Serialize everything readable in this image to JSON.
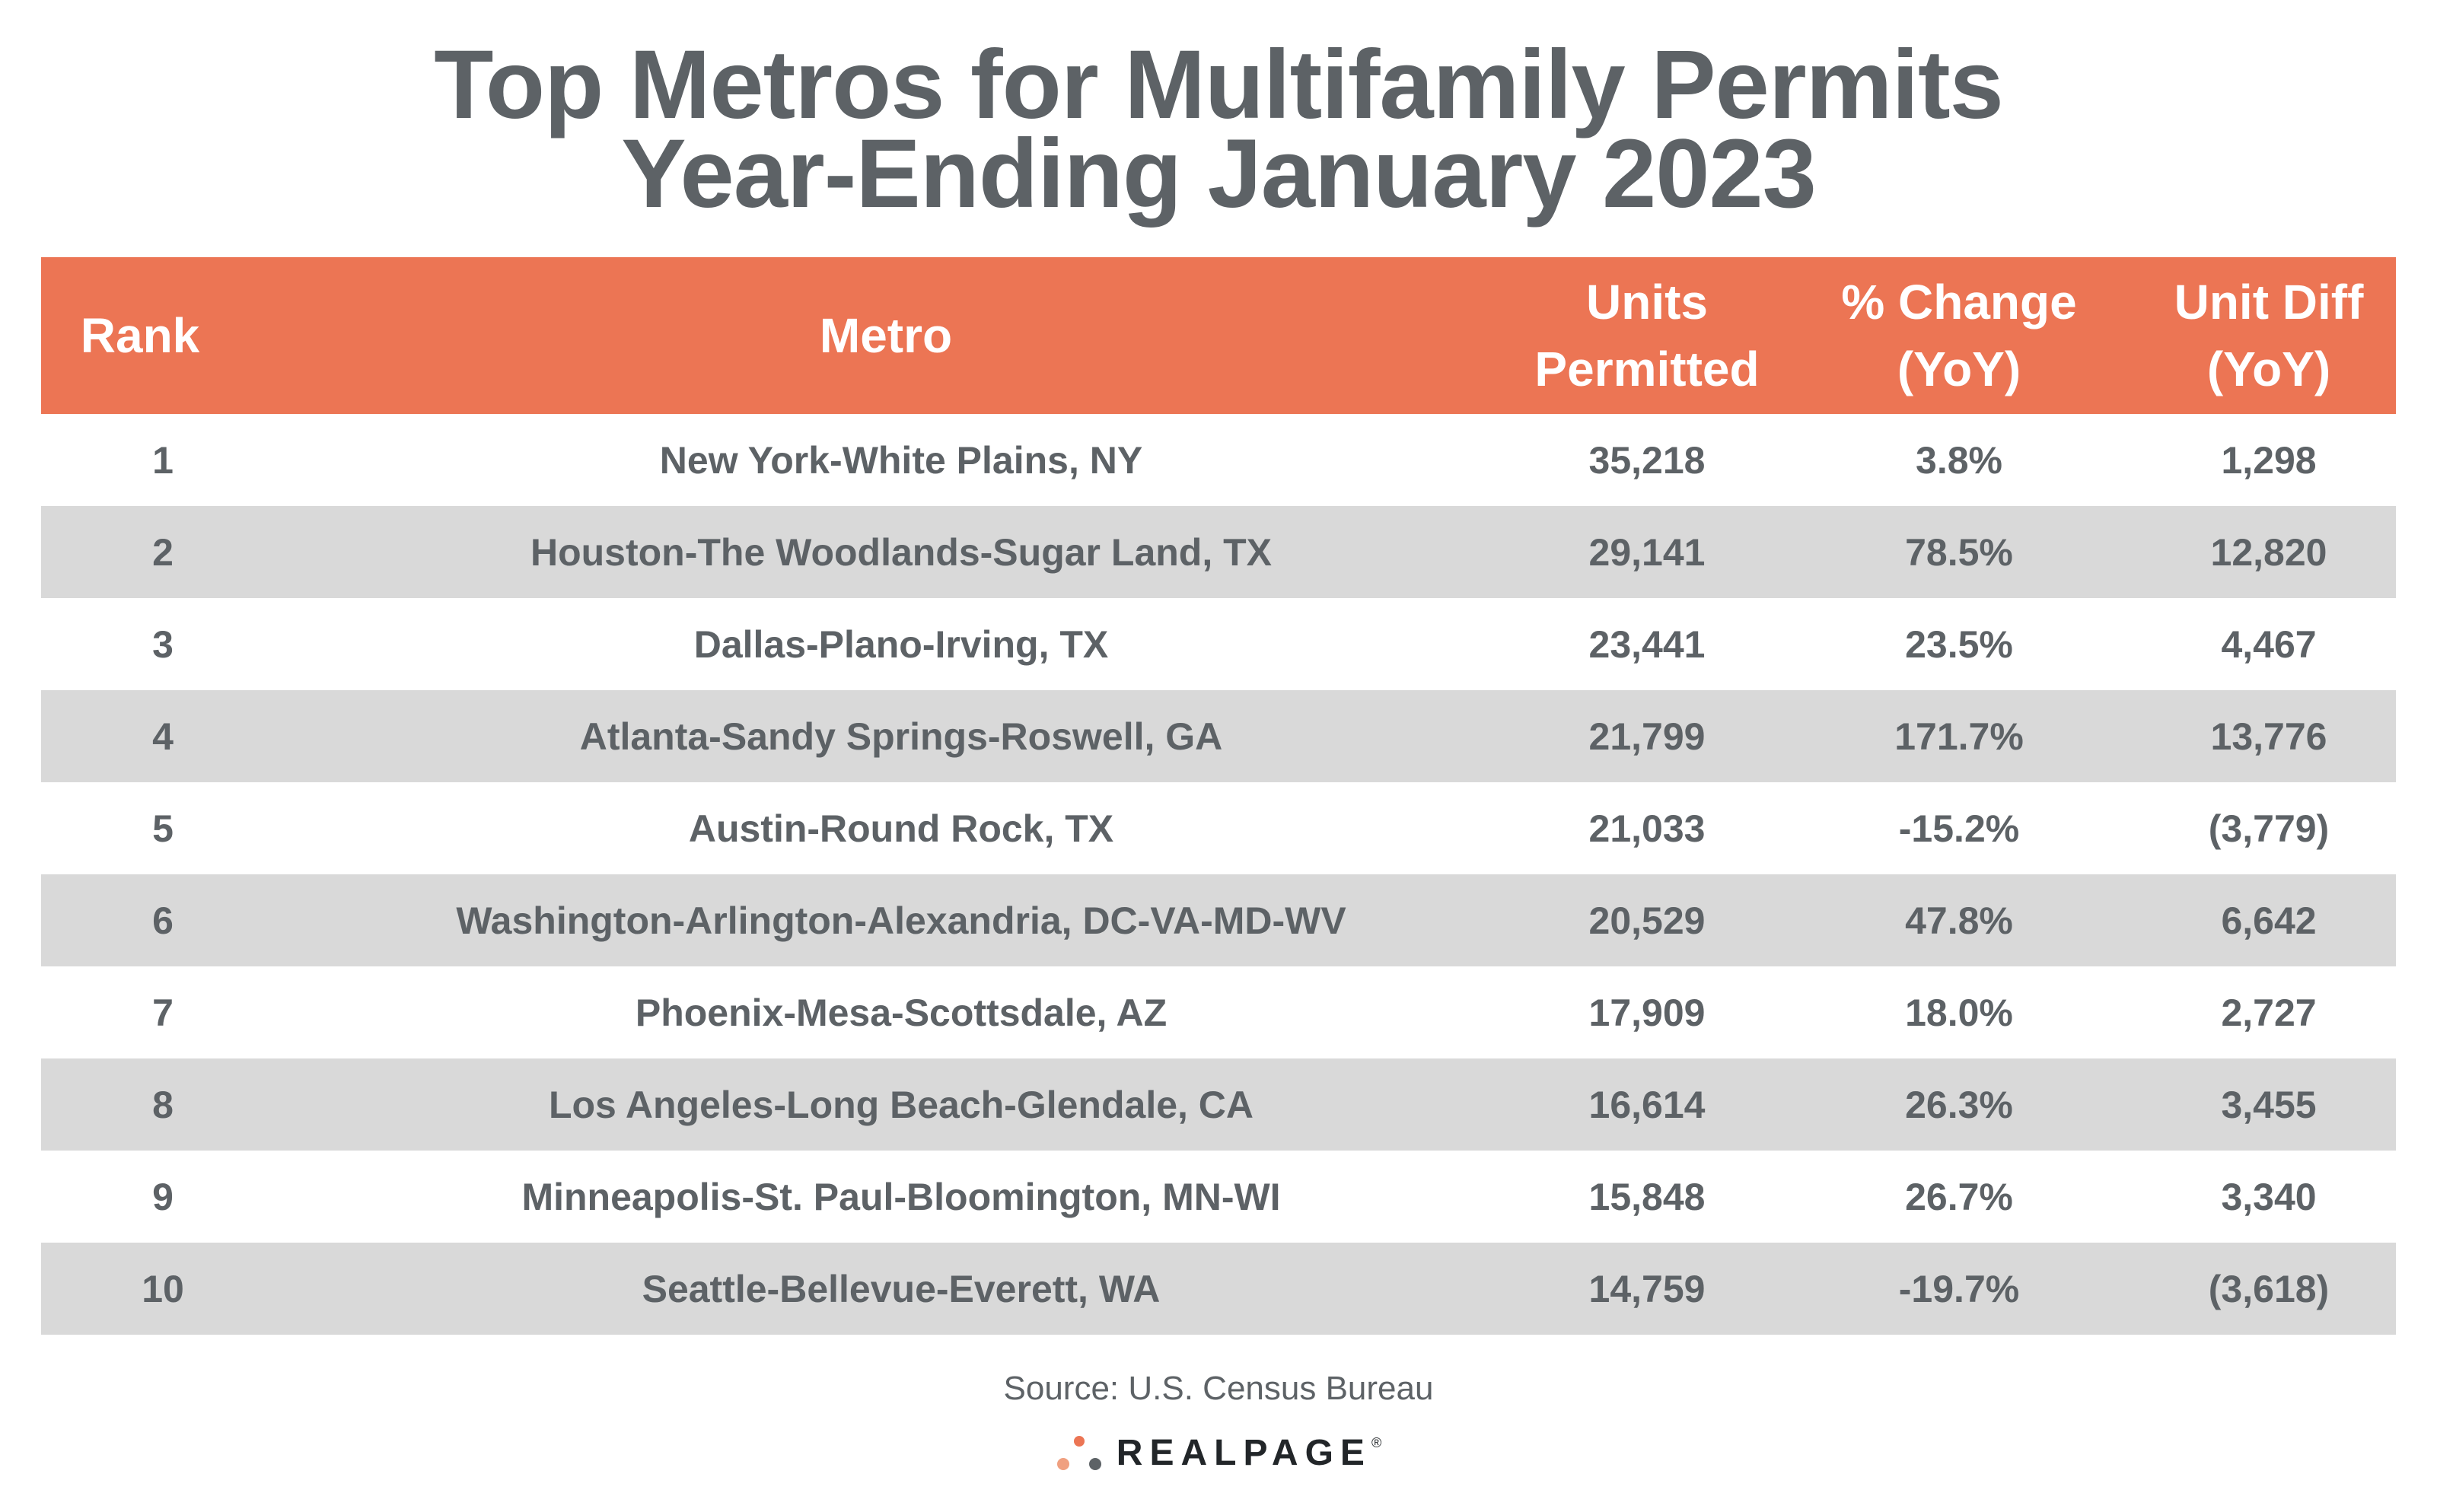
{
  "chart_data": {
    "type": "table",
    "title_line1": "Top Metros for Multifamily Permits",
    "title_line2": "Year-Ending January 2023",
    "columns": [
      {
        "key": "rank",
        "label": "Rank"
      },
      {
        "key": "metro",
        "label": "Metro"
      },
      {
        "key": "units",
        "label": "Units\nPermitted"
      },
      {
        "key": "pct",
        "label": "% Change\n(YoY)"
      },
      {
        "key": "diff",
        "label": "Unit Diff\n(YoY)"
      }
    ],
    "rows": [
      {
        "rank": "1",
        "metro": "New York-White Plains, NY",
        "units": "35,218",
        "pct": "3.8%",
        "diff": "1,298"
      },
      {
        "rank": "2",
        "metro": "Houston-The Woodlands-Sugar Land, TX",
        "units": "29,141",
        "pct": "78.5%",
        "diff": "12,820"
      },
      {
        "rank": "3",
        "metro": "Dallas-Plano-Irving, TX",
        "units": "23,441",
        "pct": "23.5%",
        "diff": "4,467"
      },
      {
        "rank": "4",
        "metro": "Atlanta-Sandy Springs-Roswell, GA",
        "units": "21,799",
        "pct": "171.7%",
        "diff": "13,776"
      },
      {
        "rank": "5",
        "metro": "Austin-Round Rock, TX",
        "units": "21,033",
        "pct": "-15.2%",
        "diff": "(3,779)"
      },
      {
        "rank": "6",
        "metro": "Washington-Arlington-Alexandria, DC-VA-MD-WV",
        "units": "20,529",
        "pct": "47.8%",
        "diff": "6,642"
      },
      {
        "rank": "7",
        "metro": "Phoenix-Mesa-Scottsdale, AZ",
        "units": "17,909",
        "pct": "18.0%",
        "diff": "2,727"
      },
      {
        "rank": "8",
        "metro": "Los Angeles-Long Beach-Glendale, CA",
        "units": "16,614",
        "pct": "26.3%",
        "diff": "3,455"
      },
      {
        "rank": "9",
        "metro": "Minneapolis-St. Paul-Bloomington, MN-WI",
        "units": "15,848",
        "pct": "26.7%",
        "diff": "3,340"
      },
      {
        "rank": "10",
        "metro": "Seattle-Bellevue-Everett, WA",
        "units": "14,759",
        "pct": "-19.7%",
        "diff": "(3,618)"
      }
    ],
    "source": "Source: U.S. Census Bureau"
  },
  "brand": {
    "name": "REALPAGE",
    "mark": "®"
  },
  "colors": {
    "header_bg": "#ec7554",
    "header_text": "#ffffff",
    "body_text": "#5d6266",
    "stripe": "#d9d9d9",
    "brand_dot_1": "#ec7554",
    "brand_dot_2": "#f0a080",
    "brand_dot_3": "#5d6266"
  }
}
